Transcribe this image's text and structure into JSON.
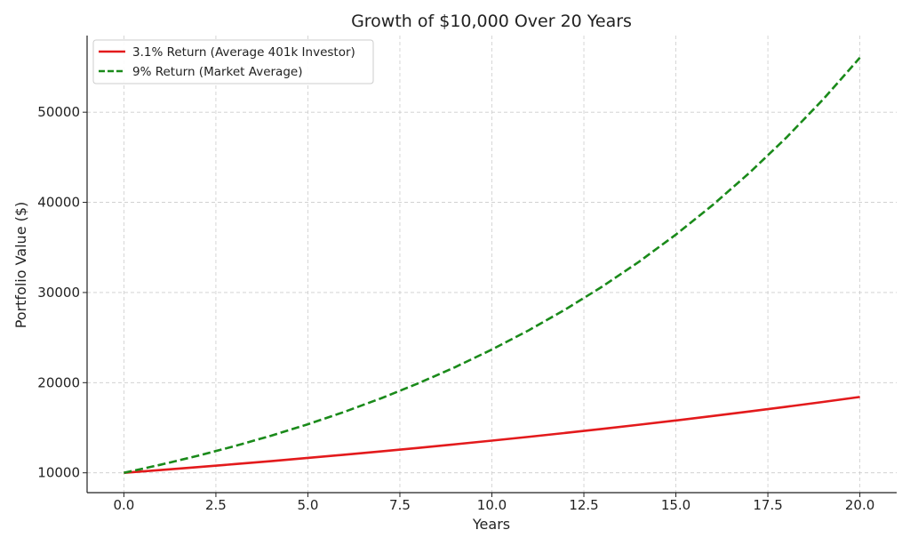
{
  "chart_data": {
    "type": "line",
    "title": "Growth of $10,000 Over 20 Years",
    "xlabel": "Years",
    "ylabel": "Portfolio Value ($)",
    "xlim": [
      -1,
      21
    ],
    "ylim": [
      7800,
      58500
    ],
    "x_ticks": [
      0,
      2.5,
      5,
      7.5,
      10,
      12.5,
      15,
      17.5,
      20
    ],
    "x_tick_labels": [
      "0.0",
      "2.5",
      "5.0",
      "7.5",
      "10.0",
      "12.5",
      "15.0",
      "17.5",
      "20.0"
    ],
    "y_ticks": [
      10000,
      20000,
      30000,
      40000,
      50000
    ],
    "y_tick_labels": [
      "10000",
      "20000",
      "30000",
      "40000",
      "50000"
    ],
    "grid": true,
    "legend_position": "top-left",
    "x": [
      0,
      1,
      2,
      3,
      4,
      5,
      6,
      7,
      8,
      9,
      10,
      11,
      12,
      13,
      14,
      15,
      16,
      17,
      18,
      19,
      20
    ],
    "series": [
      {
        "name": "3.1% Return (Average 401k Investor)",
        "color": "#e31a1c",
        "style": "solid",
        "values": [
          10000,
          10310,
          10630,
          10959,
          11299,
          11649,
          12010,
          12383,
          12766,
          13162,
          13570,
          13991,
          14425,
          14872,
          15333,
          15808,
          16298,
          16804,
          17325,
          17862,
          18416
        ]
      },
      {
        "name": "9% Return (Market Average)",
        "color": "#1a8a1a",
        "style": "dashed",
        "values": [
          10000,
          10900,
          11881,
          12950,
          14116,
          15386,
          16771,
          18280,
          19926,
          21719,
          23674,
          25804,
          28127,
          30658,
          33417,
          36425,
          39703,
          43276,
          47171,
          51417,
          56044
        ]
      }
    ]
  }
}
